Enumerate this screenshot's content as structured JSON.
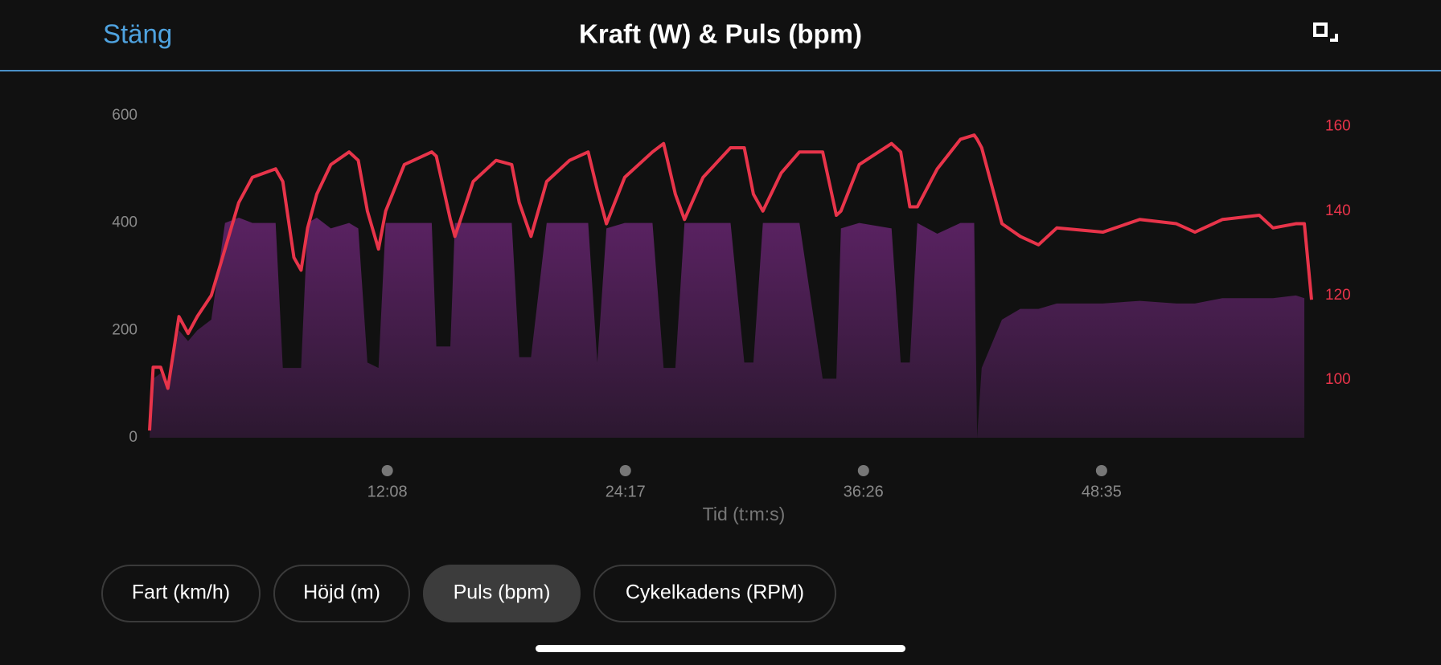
{
  "header": {
    "close": "Stäng"
  },
  "chart_data": {
    "type": "area-line",
    "title": "Kraft (W) & Puls (bpm)",
    "xlabel": "Tid (t:m:s)",
    "x": [
      0,
      11,
      34,
      56,
      90,
      118,
      146,
      189,
      231,
      273,
      315,
      386,
      408,
      442,
      464,
      484,
      512,
      555,
      611,
      639,
      667,
      701,
      723,
      780,
      864,
      878,
      921,
      935,
      991,
      1061,
      1109,
      1132,
      1168,
      1216,
      1286,
      1343,
      1371,
      1399,
      1455,
      1540,
      1574,
      1610,
      1638,
      1695,
      1779,
      1821,
      1849,
      1878,
      1934,
      1990,
      2061,
      2103,
      2117,
      2173,
      2272,
      2300,
      2328,
      2351,
      2412,
      2483,
      2525,
      2534,
      2548,
      2610,
      2666,
      2722,
      2778,
      2919,
      3032,
      3144,
      3201,
      3285,
      3398,
      3440,
      3510,
      3536,
      3558
    ],
    "series": [
      {
        "color": "#5a2262",
        "values": [
          0,
          110,
          120,
          90,
          200,
          180,
          200,
          220,
          400,
          410,
          400,
          400,
          130,
          130,
          130,
          400,
          410,
          390,
          400,
          390,
          140,
          130,
          400,
          400,
          400,
          170,
          170,
          400,
          400,
          400,
          400,
          150,
          150,
          400,
          400,
          400,
          140,
          390,
          400,
          400,
          130,
          130,
          400,
          400,
          400,
          140,
          140,
          400,
          400,
          400,
          110,
          110,
          390,
          400,
          390,
          140,
          140,
          400,
          380,
          400,
          400,
          0,
          130,
          220,
          240,
          240,
          250,
          250,
          255,
          250,
          250,
          260,
          260,
          260,
          265,
          260,
          null
        ]
      },
      {
        "color": "#e8344a",
        "axis": "y2",
        "values": [
          88,
          103,
          103,
          98,
          115,
          111,
          115,
          120,
          131,
          142,
          148,
          150,
          147,
          129,
          126,
          136,
          144,
          151,
          154,
          152,
          140,
          131,
          140,
          151,
          154,
          153,
          138,
          134,
          147,
          152,
          151,
          142,
          134,
          147,
          152,
          154,
          145,
          137,
          148,
          154,
          156,
          144,
          138,
          148,
          155,
          155,
          144,
          140,
          149,
          154,
          154,
          139,
          140,
          151,
          156,
          154,
          141,
          141,
          150,
          157,
          158,
          157,
          155,
          137,
          134,
          132,
          136,
          135,
          138,
          137,
          135,
          138,
          139,
          136,
          137,
          137,
          119
        ]
      }
    ],
    "xlim": [
      0,
      3558
    ],
    "xticks": [
      {
        "value": 728,
        "label": "12:08"
      },
      {
        "value": 1457,
        "label": "24:17"
      },
      {
        "value": 2186,
        "label": "36:26"
      },
      {
        "value": 2915,
        "label": "48:35"
      }
    ],
    "ylim": [
      0,
      600
    ],
    "yticks": [
      0,
      200,
      400,
      600
    ],
    "y2lim": [
      86.3,
      162.6
    ],
    "y2ticks": [
      100,
      120,
      140,
      160
    ]
  },
  "buttons": [
    "Fart (km/h)",
    "Höjd (m)",
    "Puls (bpm)",
    "Cykelkadens (RPM)"
  ],
  "selected": 2
}
